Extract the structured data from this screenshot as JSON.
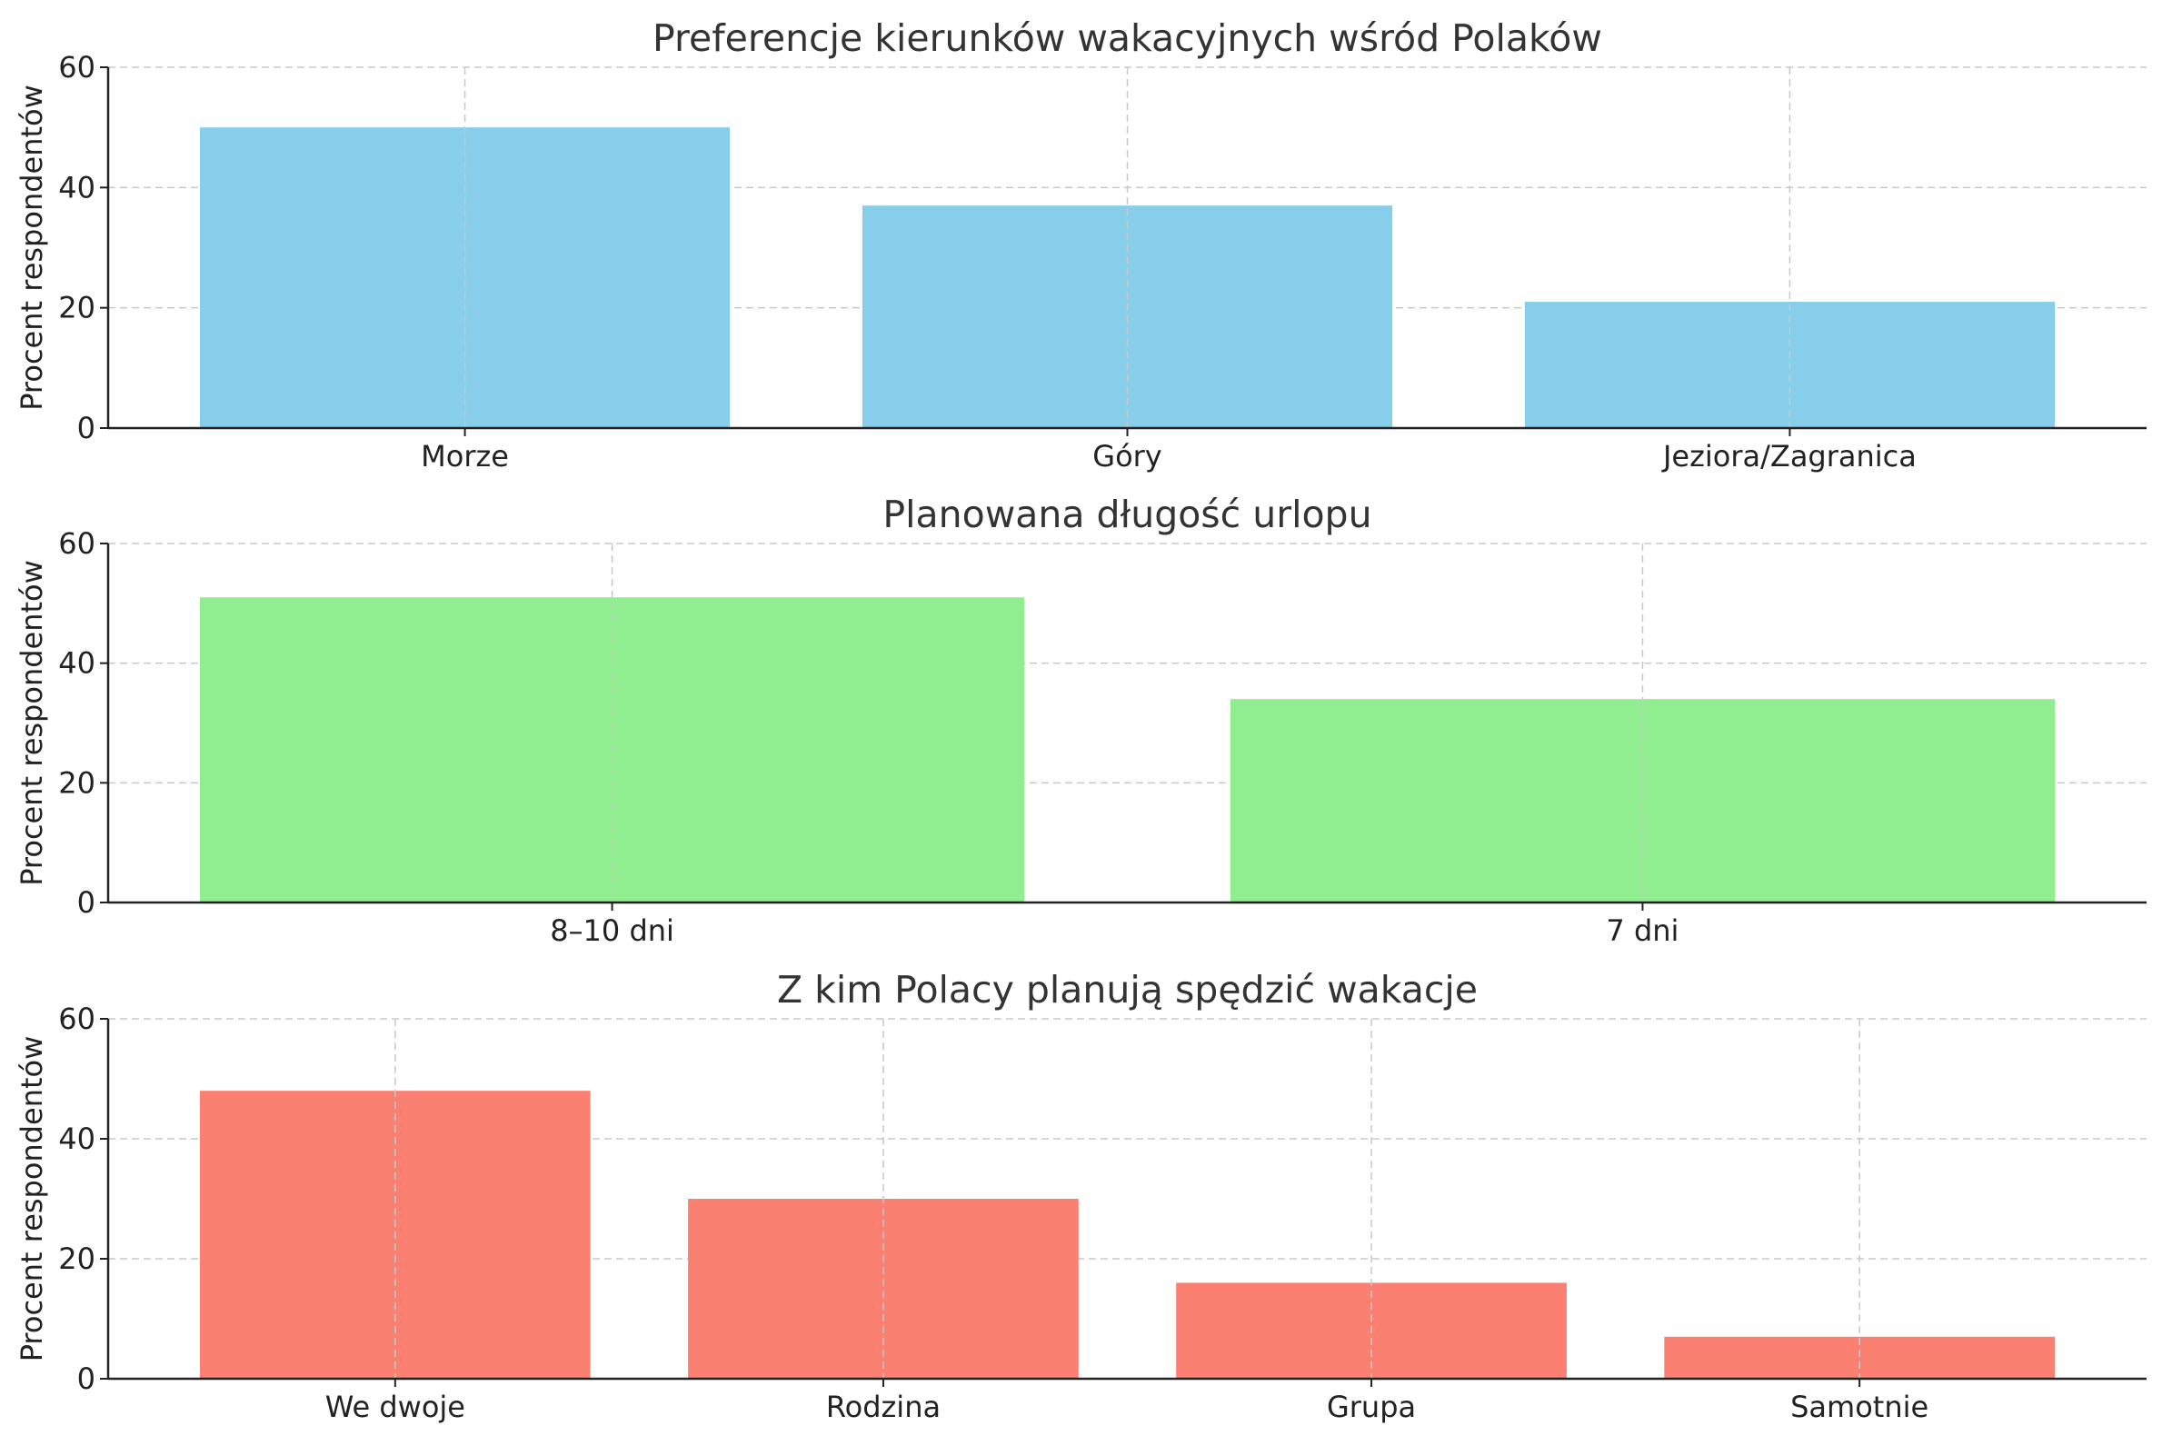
{
  "chart_data": [
    {
      "type": "bar",
      "title": "Preferencje kierunków wakacyjnych wśród Polaków",
      "xlabel": "",
      "ylabel": "Procent respondentów",
      "categories": [
        "Morze",
        "Góry",
        "Jeziora/Zagranica"
      ],
      "values": [
        50,
        37,
        21
      ],
      "ylim": [
        0,
        60
      ],
      "yticks": [
        0,
        20,
        40,
        60
      ],
      "color": "#87CEEB",
      "grid": true
    },
    {
      "type": "bar",
      "title": "Planowana długość urlopu",
      "xlabel": "",
      "ylabel": "Procent respondentów",
      "categories": [
        "8–10 dni",
        "7 dni"
      ],
      "values": [
        51,
        34
      ],
      "ylim": [
        0,
        60
      ],
      "yticks": [
        0,
        20,
        40,
        60
      ],
      "color": "#90EE90",
      "grid": true
    },
    {
      "type": "bar",
      "title": "Z kim Polacy planują spędzić wakacje",
      "xlabel": "",
      "ylabel": "Procent respondentów",
      "categories": [
        "We dwoje",
        "Rodzina",
        "Grupa",
        "Samotnie"
      ],
      "values": [
        48,
        30,
        16,
        7
      ],
      "ylim": [
        0,
        60
      ],
      "yticks": [
        0,
        20,
        40,
        60
      ],
      "color": "#FA8072",
      "grid": true
    }
  ]
}
